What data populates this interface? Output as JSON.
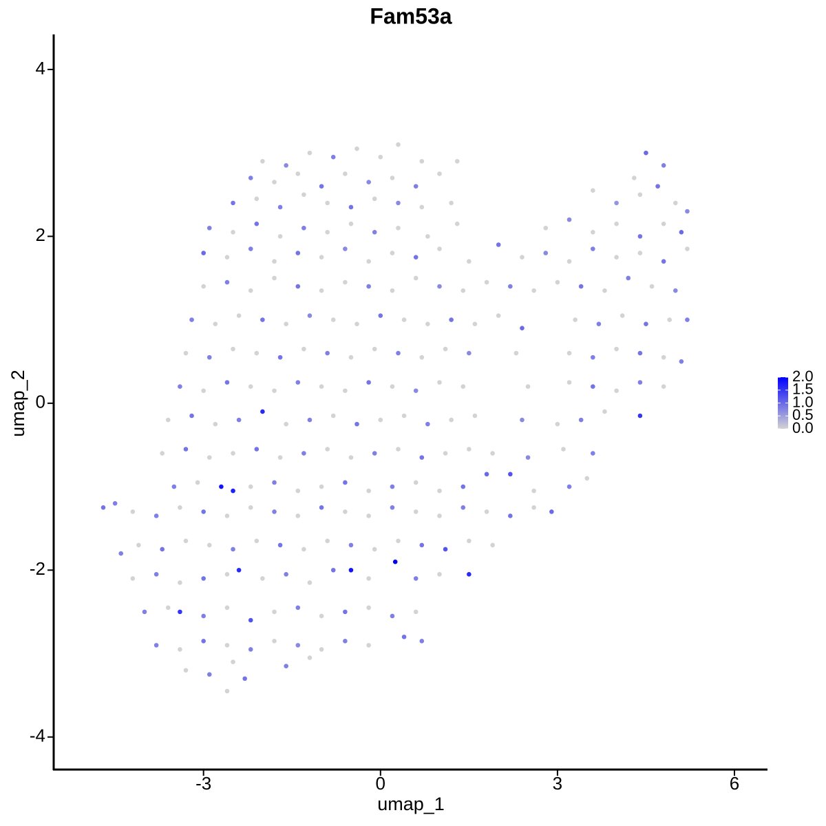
{
  "chart_data": {
    "type": "scatter",
    "title": "Fam53a",
    "x_label": "umap_1",
    "y_label": "umap_2",
    "xlim": [
      -5.54,
      6.56
    ],
    "ylim": [
      -4.39,
      4.42
    ],
    "xticks": [
      -3,
      0,
      3,
      6
    ],
    "yticks": [
      -4,
      -2,
      0,
      2,
      4
    ],
    "color_low": "#d3d3d3",
    "color_high": "#0000ff",
    "colorlim": [
      0,
      2
    ],
    "colorbar_ticks": [
      {
        "value": 0,
        "label": "0.0"
      },
      {
        "value": 0.5,
        "label": "0.5"
      },
      {
        "value": 1,
        "label": "1.0"
      },
      {
        "value": 1.5,
        "label": "1.5"
      },
      {
        "value": 2,
        "label": "2.0"
      }
    ],
    "points": [
      [
        -1.2,
        3.0,
        0
      ],
      [
        -0.8,
        2.95,
        0.8
      ],
      [
        -0.4,
        3.05,
        0
      ],
      [
        0,
        2.95,
        0
      ],
      [
        0.3,
        3.1,
        0
      ],
      [
        0.7,
        2.9,
        0
      ],
      [
        -1.6,
        2.85,
        0.7
      ],
      [
        -2.0,
        2.9,
        0
      ],
      [
        1.3,
        2.9,
        0
      ],
      [
        -2.2,
        2.7,
        0.8
      ],
      [
        -1.8,
        2.65,
        0
      ],
      [
        -1.4,
        2.75,
        0
      ],
      [
        -1.0,
        2.6,
        0.9
      ],
      [
        -0.6,
        2.75,
        0
      ],
      [
        -0.2,
        2.65,
        0.7
      ],
      [
        0.2,
        2.7,
        0
      ],
      [
        0.6,
        2.6,
        0.8
      ],
      [
        1.0,
        2.75,
        0
      ],
      [
        4.5,
        3.0,
        1.0
      ],
      [
        4.8,
        2.85,
        0.8
      ],
      [
        4.3,
        2.7,
        0
      ],
      [
        -2.5,
        2.4,
        0.9
      ],
      [
        -2.1,
        2.45,
        0
      ],
      [
        -1.7,
        2.35,
        0.8
      ],
      [
        -1.3,
        2.5,
        0
      ],
      [
        -0.9,
        2.4,
        0
      ],
      [
        -0.5,
        2.35,
        0.9
      ],
      [
        -0.1,
        2.45,
        0
      ],
      [
        0.3,
        2.4,
        0.7
      ],
      [
        0.7,
        2.35,
        0
      ],
      [
        1.2,
        2.4,
        0
      ],
      [
        3.6,
        2.55,
        0
      ],
      [
        4.0,
        2.4,
        0.6
      ],
      [
        4.4,
        2.5,
        0
      ],
      [
        4.7,
        2.6,
        0.9
      ],
      [
        5.0,
        2.4,
        0
      ],
      [
        5.2,
        2.3,
        0.7
      ],
      [
        -2.9,
        2.1,
        0.8
      ],
      [
        -2.5,
        2.05,
        0
      ],
      [
        -2.1,
        2.15,
        0.9
      ],
      [
        -1.7,
        2.0,
        0
      ],
      [
        -1.3,
        2.1,
        0.8
      ],
      [
        -0.9,
        2.05,
        0
      ],
      [
        -0.5,
        2.15,
        0
      ],
      [
        -0.1,
        2.05,
        0.8
      ],
      [
        0.3,
        2.1,
        0
      ],
      [
        0.8,
        2.0,
        0
      ],
      [
        1.3,
        2.15,
        0
      ],
      [
        2.8,
        2.1,
        0
      ],
      [
        3.2,
        2.2,
        0.7
      ],
      [
        3.6,
        2.05,
        0
      ],
      [
        4.0,
        2.15,
        0
      ],
      [
        4.4,
        2.0,
        0.9
      ],
      [
        4.8,
        2.15,
        0
      ],
      [
        5.1,
        2.05,
        1.0
      ],
      [
        -3.0,
        1.8,
        1.0
      ],
      [
        -2.6,
        1.75,
        0
      ],
      [
        -2.2,
        1.85,
        0.8
      ],
      [
        -1.8,
        1.7,
        0
      ],
      [
        -1.4,
        1.8,
        0.9
      ],
      [
        -1.0,
        1.75,
        0
      ],
      [
        -0.6,
        1.85,
        0.7
      ],
      [
        -0.2,
        1.7,
        0
      ],
      [
        0.2,
        1.8,
        0
      ],
      [
        0.6,
        1.75,
        0.9
      ],
      [
        1.0,
        1.85,
        0
      ],
      [
        1.5,
        1.7,
        0
      ],
      [
        2.0,
        1.9,
        0.9
      ],
      [
        2.4,
        1.75,
        0
      ],
      [
        2.8,
        1.8,
        0.7
      ],
      [
        3.2,
        1.7,
        0
      ],
      [
        3.6,
        1.85,
        0.8
      ],
      [
        4.0,
        1.75,
        0
      ],
      [
        4.4,
        1.8,
        0
      ],
      [
        4.8,
        1.7,
        0.9
      ],
      [
        5.2,
        1.85,
        0
      ],
      [
        -3.0,
        1.4,
        0
      ],
      [
        -2.6,
        1.45,
        0.8
      ],
      [
        -2.2,
        1.35,
        0
      ],
      [
        -1.8,
        1.5,
        0
      ],
      [
        -1.4,
        1.4,
        0.9
      ],
      [
        -1.0,
        1.35,
        0
      ],
      [
        -0.6,
        1.45,
        0
      ],
      [
        -0.2,
        1.4,
        0.8
      ],
      [
        0.2,
        1.35,
        0
      ],
      [
        0.6,
        1.5,
        0
      ],
      [
        1.0,
        1.4,
        0.7
      ],
      [
        1.4,
        1.35,
        0
      ],
      [
        1.8,
        1.45,
        0
      ],
      [
        2.2,
        1.4,
        0.8
      ],
      [
        2.6,
        1.35,
        0
      ],
      [
        3.0,
        1.45,
        0
      ],
      [
        3.4,
        1.4,
        0.9
      ],
      [
        3.8,
        1.35,
        0
      ],
      [
        4.2,
        1.5,
        0.8
      ],
      [
        4.6,
        1.4,
        0
      ],
      [
        5.0,
        1.35,
        0.7
      ],
      [
        -3.2,
        1.0,
        0.8
      ],
      [
        -2.8,
        0.95,
        0
      ],
      [
        -2.4,
        1.05,
        0
      ],
      [
        -2.0,
        1.0,
        0.9
      ],
      [
        -1.6,
        0.95,
        0
      ],
      [
        -1.2,
        1.05,
        0.7
      ],
      [
        -0.8,
        1.0,
        0
      ],
      [
        -0.4,
        0.95,
        0
      ],
      [
        0,
        1.05,
        0.9
      ],
      [
        0.4,
        1.0,
        0
      ],
      [
        0.8,
        0.95,
        0
      ],
      [
        1.2,
        1.0,
        0.9
      ],
      [
        1.6,
        0.95,
        0
      ],
      [
        2.0,
        1.05,
        0
      ],
      [
        2.4,
        0.9,
        1.0
      ],
      [
        3.3,
        1.0,
        0
      ],
      [
        3.7,
        0.95,
        0.8
      ],
      [
        4.1,
        1.05,
        0
      ],
      [
        4.5,
        0.95,
        0.9
      ],
      [
        4.9,
        1.0,
        0
      ],
      [
        5.2,
        1.0,
        0.8
      ],
      [
        -3.3,
        0.6,
        0
      ],
      [
        -2.9,
        0.55,
        0.8
      ],
      [
        -2.5,
        0.65,
        0
      ],
      [
        -2.1,
        0.6,
        0
      ],
      [
        -1.7,
        0.55,
        0.9
      ],
      [
        -1.3,
        0.65,
        0
      ],
      [
        -0.9,
        0.6,
        0.8
      ],
      [
        -0.5,
        0.55,
        0
      ],
      [
        -0.1,
        0.65,
        0
      ],
      [
        0.3,
        0.6,
        0.8
      ],
      [
        0.7,
        0.55,
        0
      ],
      [
        1.1,
        0.65,
        0
      ],
      [
        1.5,
        0.6,
        0.7
      ],
      [
        2.3,
        0.6,
        0
      ],
      [
        3.2,
        0.6,
        0
      ],
      [
        3.6,
        0.55,
        0.8
      ],
      [
        4.0,
        0.65,
        0
      ],
      [
        4.4,
        0.6,
        0.9
      ],
      [
        4.8,
        0.55,
        0
      ],
      [
        5.1,
        0.5,
        0.8
      ],
      [
        -3.4,
        0.2,
        0.8
      ],
      [
        -3.0,
        0.15,
        0
      ],
      [
        -2.6,
        0.25,
        0.9
      ],
      [
        -2.2,
        0.2,
        0
      ],
      [
        -1.8,
        0.15,
        0
      ],
      [
        -1.4,
        0.25,
        0.8
      ],
      [
        -1.0,
        0.2,
        0
      ],
      [
        -0.6,
        0.15,
        0
      ],
      [
        -0.2,
        0.25,
        0.9
      ],
      [
        0.2,
        0.2,
        0
      ],
      [
        0.6,
        0.15,
        0.7
      ],
      [
        1.0,
        0.25,
        0
      ],
      [
        1.4,
        0.2,
        0
      ],
      [
        2.5,
        0.2,
        0
      ],
      [
        3.2,
        0.25,
        0
      ],
      [
        3.6,
        0.2,
        0.9
      ],
      [
        4.0,
        0.15,
        0
      ],
      [
        4.4,
        0.25,
        0.8
      ],
      [
        4.8,
        0.2,
        0
      ],
      [
        -3.6,
        -0.2,
        0
      ],
      [
        -3.2,
        -0.15,
        0.9
      ],
      [
        -2.8,
        -0.25,
        0
      ],
      [
        -2.4,
        -0.2,
        0.8
      ],
      [
        -2.0,
        -0.1,
        1.6
      ],
      [
        -1.6,
        -0.25,
        0
      ],
      [
        -1.2,
        -0.2,
        0.8
      ],
      [
        -0.8,
        -0.15,
        0
      ],
      [
        -0.4,
        -0.25,
        0.9
      ],
      [
        0,
        -0.2,
        0
      ],
      [
        0.4,
        -0.15,
        0
      ],
      [
        0.8,
        -0.25,
        0.8
      ],
      [
        1.2,
        -0.2,
        0
      ],
      [
        1.6,
        -0.15,
        0
      ],
      [
        2.4,
        -0.2,
        0.7
      ],
      [
        3.0,
        -0.25,
        0
      ],
      [
        3.4,
        -0.2,
        0.8
      ],
      [
        3.8,
        -0.1,
        0
      ],
      [
        4.4,
        -0.15,
        1.5
      ],
      [
        -3.7,
        -0.6,
        0
      ],
      [
        -3.3,
        -0.55,
        0.9
      ],
      [
        -2.9,
        -0.65,
        0
      ],
      [
        -2.5,
        -0.6,
        0
      ],
      [
        -2.1,
        -0.55,
        0.9
      ],
      [
        -1.7,
        -0.65,
        0
      ],
      [
        -1.3,
        -0.6,
        0.8
      ],
      [
        -0.9,
        -0.55,
        0
      ],
      [
        -0.5,
        -0.65,
        0
      ],
      [
        -0.1,
        -0.6,
        0.8
      ],
      [
        0.3,
        -0.55,
        0
      ],
      [
        0.7,
        -0.65,
        0.9
      ],
      [
        1.1,
        -0.6,
        0
      ],
      [
        1.5,
        -0.55,
        0
      ],
      [
        1.9,
        -0.6,
        0
      ],
      [
        2.5,
        -0.65,
        0.7
      ],
      [
        3.1,
        -0.55,
        0
      ],
      [
        3.6,
        -0.6,
        0.8
      ],
      [
        -3.5,
        -1.0,
        0.8
      ],
      [
        -3.1,
        -0.95,
        0
      ],
      [
        -2.7,
        -1.0,
        1.8
      ],
      [
        -2.5,
        -1.05,
        1.7
      ],
      [
        -2.2,
        -1.0,
        0
      ],
      [
        -1.8,
        -0.95,
        0.8
      ],
      [
        -1.4,
        -1.05,
        0
      ],
      [
        -1.0,
        -1.0,
        0
      ],
      [
        -0.6,
        -0.95,
        0.9
      ],
      [
        -0.2,
        -1.05,
        0
      ],
      [
        0.2,
        -1.0,
        0.8
      ],
      [
        0.6,
        -0.95,
        0
      ],
      [
        1.0,
        -1.05,
        0
      ],
      [
        1.4,
        -1.0,
        0.9
      ],
      [
        1.8,
        -0.85,
        1.0
      ],
      [
        2.2,
        -0.85,
        1.2
      ],
      [
        2.6,
        -1.05,
        0
      ],
      [
        3.2,
        -1.0,
        0.8
      ],
      [
        3.5,
        -0.9,
        0
      ],
      [
        -4.7,
        -1.25,
        0.9
      ],
      [
        -4.5,
        -1.2,
        0.8
      ],
      [
        -4.2,
        -1.3,
        0
      ],
      [
        -3.8,
        -1.35,
        0.8
      ],
      [
        -3.4,
        -1.25,
        0
      ],
      [
        -3.0,
        -1.3,
        0.9
      ],
      [
        -2.6,
        -1.35,
        0
      ],
      [
        -2.2,
        -1.25,
        0
      ],
      [
        -1.8,
        -1.3,
        0.8
      ],
      [
        -1.4,
        -1.35,
        0
      ],
      [
        -1.0,
        -1.25,
        0.9
      ],
      [
        -0.6,
        -1.3,
        0
      ],
      [
        -0.2,
        -1.35,
        0
      ],
      [
        0.2,
        -1.25,
        0.8
      ],
      [
        0.6,
        -1.3,
        0
      ],
      [
        1.0,
        -1.35,
        0
      ],
      [
        1.4,
        -1.25,
        0.8
      ],
      [
        1.8,
        -1.3,
        0
      ],
      [
        2.2,
        -1.35,
        0.9
      ],
      [
        2.6,
        -1.25,
        0
      ],
      [
        2.9,
        -1.3,
        1.0
      ],
      [
        -4.4,
        -1.8,
        0.8
      ],
      [
        -4.1,
        -1.7,
        0
      ],
      [
        -3.7,
        -1.75,
        0.9
      ],
      [
        -3.3,
        -1.65,
        0
      ],
      [
        -2.9,
        -1.7,
        0
      ],
      [
        -2.5,
        -1.75,
        0.8
      ],
      [
        -2.1,
        -1.65,
        0
      ],
      [
        -1.7,
        -1.7,
        0.9
      ],
      [
        -1.3,
        -1.75,
        0
      ],
      [
        -0.9,
        -1.65,
        0
      ],
      [
        -0.5,
        -1.7,
        0.8
      ],
      [
        -0.1,
        -1.75,
        0
      ],
      [
        0.3,
        -1.65,
        0
      ],
      [
        0.7,
        -1.7,
        0.9
      ],
      [
        1.1,
        -1.75,
        1.2
      ],
      [
        1.5,
        -1.65,
        0
      ],
      [
        1.9,
        -1.7,
        0
      ],
      [
        -4.2,
        -2.1,
        0
      ],
      [
        -3.8,
        -2.05,
        0.8
      ],
      [
        -3.4,
        -2.15,
        0
      ],
      [
        -3.0,
        -2.1,
        0.9
      ],
      [
        -2.6,
        -2.05,
        0
      ],
      [
        -2.4,
        -2.0,
        1.6
      ],
      [
        -2.0,
        -2.1,
        0
      ],
      [
        -1.6,
        -2.05,
        0.8
      ],
      [
        -1.2,
        -2.15,
        0
      ],
      [
        -0.8,
        -2.0,
        0.9
      ],
      [
        -0.5,
        -2.0,
        1.8
      ],
      [
        -0.2,
        -2.1,
        0
      ],
      [
        0.25,
        -1.9,
        2.0
      ],
      [
        0.6,
        -2.1,
        0.8
      ],
      [
        1.0,
        -2.05,
        0
      ],
      [
        1.5,
        -2.05,
        1.6
      ],
      [
        -4.0,
        -2.5,
        0.8
      ],
      [
        -3.6,
        -2.45,
        0
      ],
      [
        -3.4,
        -2.5,
        1.5
      ],
      [
        -3.0,
        -2.55,
        0.8
      ],
      [
        -2.6,
        -2.45,
        0
      ],
      [
        -2.2,
        -2.6,
        1.2
      ],
      [
        -1.8,
        -2.5,
        0
      ],
      [
        -1.4,
        -2.45,
        0.8
      ],
      [
        -1.0,
        -2.55,
        0
      ],
      [
        -0.6,
        -2.5,
        0.9
      ],
      [
        -0.2,
        -2.45,
        0
      ],
      [
        0.2,
        -2.55,
        0.8
      ],
      [
        0.6,
        -2.5,
        0
      ],
      [
        -3.8,
        -2.9,
        0.8
      ],
      [
        -3.4,
        -2.95,
        0
      ],
      [
        -3.0,
        -2.85,
        0.9
      ],
      [
        -2.6,
        -2.9,
        0
      ],
      [
        -2.2,
        -2.95,
        0.8
      ],
      [
        -1.8,
        -2.85,
        0
      ],
      [
        -1.4,
        -2.9,
        0.7
      ],
      [
        -1.0,
        -2.95,
        0
      ],
      [
        -0.6,
        -2.85,
        0.8
      ],
      [
        -0.2,
        -2.9,
        0
      ],
      [
        0.4,
        -2.8,
        0.9
      ],
      [
        0.7,
        -2.85,
        0.8
      ],
      [
        -3.3,
        -3.2,
        0
      ],
      [
        -2.9,
        -3.25,
        0.8
      ],
      [
        -2.5,
        -3.1,
        0
      ],
      [
        -2.3,
        -3.3,
        0.9
      ],
      [
        -2.6,
        -3.45,
        0
      ],
      [
        -1.6,
        -3.15,
        0.8
      ],
      [
        -1.2,
        -3.05,
        0
      ]
    ]
  }
}
